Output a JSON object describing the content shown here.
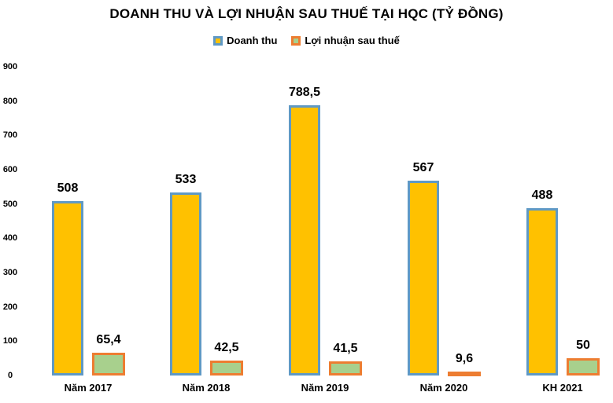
{
  "chart_data": {
    "type": "bar",
    "title": "DOANH THU VÀ LỢI NHUẬN SAU THUẾ TẠI HQC (TỶ ĐỒNG)",
    "categories": [
      "Năm 2017",
      "Năm 2018",
      "Năm 2019",
      "Năm 2020",
      "KH 2021"
    ],
    "series": [
      {
        "name": "Doanh thu",
        "values": [
          508,
          533,
          788.5,
          567,
          488
        ],
        "value_labels": [
          "508",
          "533",
          "788,5",
          "567",
          "488"
        ],
        "fill": "#FFC100",
        "border": "#5F99C5"
      },
      {
        "name": "Lợi nhuận sau thuế",
        "values": [
          65.4,
          42.5,
          41.5,
          9.6,
          50
        ],
        "value_labels": [
          "65,4",
          "42,5",
          "41,5",
          "9,6",
          "50"
        ],
        "fill": "#A8D08D",
        "border": "#ED7D31"
      }
    ],
    "ylim": [
      0,
      900
    ],
    "yticks": [
      0,
      100,
      200,
      300,
      400,
      500,
      600,
      700,
      800,
      900
    ],
    "grid": false,
    "legend_position": "top",
    "text_color": "#000000",
    "background": "#ffffff"
  }
}
